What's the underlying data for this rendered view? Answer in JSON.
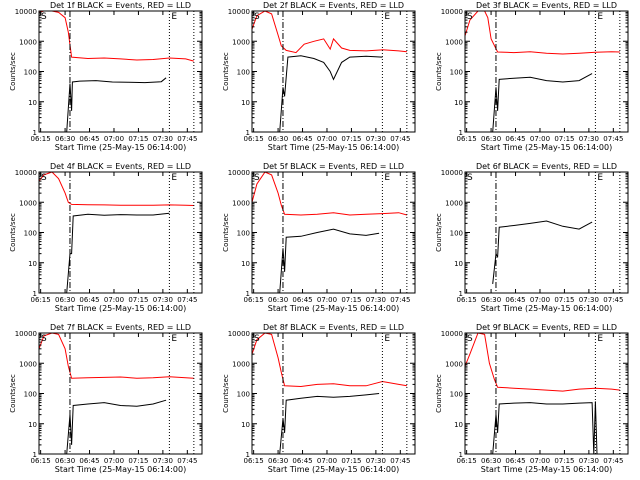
{
  "common": {
    "xlabel": "Start Time (25-May-15 06:14:00)",
    "ylabel": "Counts/sec",
    "x_ticks": [
      "06:15",
      "06:30",
      "06:45",
      "07:00",
      "07:15",
      "07:30",
      "07:45"
    ],
    "y_ticks": [
      "1",
      "10",
      "100",
      "1000",
      "10000"
    ],
    "marker_left": "S",
    "marker_right": "E",
    "colors": {
      "events": "#000000",
      "lld": "#ff0000"
    }
  },
  "chart_data": [
    {
      "type": "line",
      "title": "Det 1f BLACK = Events, RED = LLD",
      "xlabel": "Start Time (25-May-15 06:14:00)",
      "ylabel": "Counts/sec",
      "x_unit": "minutes after 06:14",
      "xlim": [
        0,
        100
      ],
      "ylim": [
        1,
        10000
      ],
      "yscale": "log",
      "vlines": [
        {
          "x": 19,
          "style": "dashdot"
        },
        {
          "x": 80,
          "style": "dotted"
        },
        {
          "x": 95,
          "style": "dotted"
        }
      ],
      "series": [
        {
          "name": "Events",
          "color": "#000000",
          "x": [
            17,
            19,
            20,
            20.5,
            25,
            35,
            45,
            55,
            65,
            75,
            78
          ],
          "y": [
            1,
            40,
            5,
            45,
            48,
            50,
            45,
            44,
            43,
            46,
            62
          ]
        },
        {
          "name": "LLD",
          "color": "#ff0000",
          "x": [
            0,
            3,
            8,
            12,
            16,
            18,
            20,
            30,
            40,
            50,
            60,
            70,
            80,
            90,
            95
          ],
          "y": [
            9000,
            10000,
            10000,
            9000,
            6000,
            2000,
            300,
            270,
            280,
            260,
            240,
            250,
            280,
            260,
            220
          ]
        }
      ]
    },
    {
      "type": "line",
      "title": "Det 2f BLACK = Events, RED = LLD",
      "xlabel": "Start Time (25-May-15 06:14:00)",
      "ylabel": "Counts/sec",
      "x_unit": "minutes after 06:14",
      "xlim": [
        0,
        100
      ],
      "ylim": [
        1,
        10000
      ],
      "yscale": "log",
      "vlines": [
        {
          "x": 19,
          "style": "dashdot"
        },
        {
          "x": 80,
          "style": "dotted"
        },
        {
          "x": 95,
          "style": "dotted"
        }
      ],
      "series": [
        {
          "name": "Events",
          "color": "#000000",
          "x": [
            17,
            19,
            20,
            22,
            30,
            38,
            44,
            48,
            50,
            55,
            60,
            70,
            80
          ],
          "y": [
            1,
            30,
            15,
            300,
            330,
            270,
            200,
            100,
            55,
            200,
            300,
            320,
            300
          ]
        },
        {
          "name": "LLD",
          "color": "#ff0000",
          "x": [
            0,
            3,
            8,
            12,
            16,
            18,
            21,
            27,
            32,
            38,
            44,
            48,
            50,
            55,
            60,
            70,
            80,
            90,
            95
          ],
          "y": [
            2500,
            7000,
            10000,
            8000,
            1600,
            700,
            500,
            420,
            800,
            1000,
            1200,
            550,
            1200,
            600,
            500,
            480,
            520,
            480,
            450
          ]
        }
      ]
    },
    {
      "type": "line",
      "title": "Det 3f BLACK = Events, RED = LLD",
      "xlabel": "Start Time (25-May-15 06:14:00)",
      "ylabel": "Counts/sec",
      "x_unit": "minutes after 06:14",
      "xlim": [
        0,
        100
      ],
      "ylim": [
        1,
        10000
      ],
      "yscale": "log",
      "vlines": [
        {
          "x": 19,
          "style": "dashdot"
        },
        {
          "x": 80,
          "style": "dotted"
        },
        {
          "x": 95,
          "style": "dotted"
        }
      ],
      "series": [
        {
          "name": "Events",
          "color": "#000000",
          "x": [
            17,
            19,
            20,
            21,
            30,
            40,
            50,
            60,
            70,
            78
          ],
          "y": [
            1,
            30,
            5,
            55,
            60,
            65,
            50,
            45,
            50,
            85
          ]
        },
        {
          "name": "LLD",
          "color": "#ff0000",
          "x": [
            0,
            3,
            8,
            12,
            14,
            16,
            20,
            30,
            40,
            50,
            60,
            70,
            80,
            90,
            95
          ],
          "y": [
            1500,
            5000,
            10000,
            10000,
            6000,
            1200,
            440,
            420,
            450,
            400,
            380,
            400,
            430,
            450,
            440
          ]
        }
      ]
    },
    {
      "type": "line",
      "title": "Det 4f BLACK = Events, RED = LLD",
      "xlabel": "Start Time (25-May-15 06:14:00)",
      "ylabel": "Counts/sec",
      "x_unit": "minutes after 06:14",
      "xlim": [
        0,
        100
      ],
      "ylim": [
        1,
        10000
      ],
      "yscale": "log",
      "vlines": [
        {
          "x": 19,
          "style": "dashdot"
        },
        {
          "x": 80,
          "style": "dotted"
        },
        {
          "x": 95,
          "style": "dotted"
        }
      ],
      "series": [
        {
          "name": "Events",
          "color": "#000000",
          "x": [
            17,
            19,
            20,
            21,
            30,
            40,
            50,
            60,
            70,
            80
          ],
          "y": [
            1,
            20,
            20,
            350,
            400,
            370,
            390,
            380,
            380,
            430
          ]
        },
        {
          "name": "LLD",
          "color": "#ff0000",
          "x": [
            0,
            3,
            8,
            12,
            16,
            18,
            20,
            30,
            40,
            50,
            60,
            70,
            80,
            90,
            95
          ],
          "y": [
            5000,
            8000,
            10000,
            6000,
            2000,
            1000,
            850,
            830,
            820,
            800,
            790,
            800,
            820,
            800,
            780
          ]
        }
      ]
    },
    {
      "type": "line",
      "title": "Det 5f BLACK = Events, RED = LLD",
      "xlabel": "Start Time (25-May-15 06:14:00)",
      "ylabel": "Counts/sec",
      "x_unit": "minutes after 06:14",
      "xlim": [
        0,
        100
      ],
      "ylim": [
        1,
        10000
      ],
      "yscale": "log",
      "vlines": [
        {
          "x": 19,
          "style": "dashdot"
        },
        {
          "x": 80,
          "style": "dotted"
        },
        {
          "x": 95,
          "style": "dotted"
        }
      ],
      "series": [
        {
          "name": "Events",
          "color": "#000000",
          "x": [
            17,
            19,
            20,
            21,
            30,
            40,
            50,
            60,
            70,
            78
          ],
          "y": [
            1,
            30,
            5,
            70,
            75,
            100,
            130,
            90,
            80,
            95
          ]
        },
        {
          "name": "LLD",
          "color": "#ff0000",
          "x": [
            0,
            3,
            8,
            12,
            16,
            18,
            20,
            30,
            40,
            50,
            60,
            70,
            80,
            90,
            95
          ],
          "y": [
            1000,
            4000,
            10000,
            8000,
            2000,
            800,
            400,
            380,
            400,
            450,
            380,
            400,
            420,
            450,
            380
          ]
        }
      ]
    },
    {
      "type": "line",
      "title": "Det 6f BLACK = Events, RED = LLD",
      "xlabel": "Start Time (25-May-15 06:14:00)",
      "ylabel": "Counts/sec",
      "x_unit": "minutes after 06:14",
      "xlim": [
        0,
        100
      ],
      "ylim": [
        1,
        10000
      ],
      "yscale": "log",
      "vlines": [
        {
          "x": 19,
          "style": "dashdot"
        },
        {
          "x": 80,
          "style": "dotted"
        },
        {
          "x": 95,
          "style": "dotted"
        }
      ],
      "series": [
        {
          "name": "Events",
          "color": "#000000",
          "x": [
            17,
            19,
            20,
            21,
            30,
            40,
            50,
            60,
            70,
            78
          ],
          "y": [
            2,
            20,
            15,
            150,
            170,
            200,
            240,
            160,
            130,
            220
          ]
        },
        {
          "name": "LLD",
          "color": "#ff0000",
          "x": [],
          "y": []
        }
      ]
    },
    {
      "type": "line",
      "title": "Det 7f BLACK = Events, RED = LLD",
      "xlabel": "Start Time (25-May-15 06:14:00)",
      "ylabel": "Counts/sec",
      "x_unit": "minutes after 06:14",
      "xlim": [
        0,
        100
      ],
      "ylim": [
        1,
        10000
      ],
      "yscale": "log",
      "vlines": [
        {
          "x": 19,
          "style": "dashdot"
        },
        {
          "x": 80,
          "style": "dotted"
        },
        {
          "x": 95,
          "style": "dotted"
        }
      ],
      "series": [
        {
          "name": "Events",
          "color": "#000000",
          "x": [
            17,
            19,
            20,
            21,
            30,
            40,
            50,
            60,
            70,
            78
          ],
          "y": [
            1,
            20,
            2,
            40,
            45,
            50,
            40,
            38,
            45,
            60
          ]
        },
        {
          "name": "LLD",
          "color": "#ff0000",
          "x": [
            0,
            3,
            8,
            12,
            16,
            18,
            20,
            30,
            40,
            50,
            60,
            70,
            80,
            90,
            95
          ],
          "y": [
            3000,
            8000,
            10000,
            9000,
            3000,
            800,
            320,
            330,
            340,
            350,
            320,
            330,
            360,
            330,
            320
          ]
        }
      ]
    },
    {
      "type": "line",
      "title": "Det 8f BLACK = Events, RED = LLD",
      "xlabel": "Start Time (25-May-15 06:14:00)",
      "ylabel": "Counts/sec",
      "x_unit": "minutes after 06:14",
      "xlim": [
        0,
        100
      ],
      "ylim": [
        1,
        10000
      ],
      "yscale": "log",
      "vlines": [
        {
          "x": 19,
          "style": "dashdot"
        },
        {
          "x": 80,
          "style": "dotted"
        },
        {
          "x": 95,
          "style": "dotted"
        }
      ],
      "series": [
        {
          "name": "Events",
          "color": "#000000",
          "x": [
            17,
            19,
            20,
            21,
            30,
            40,
            50,
            60,
            70,
            78
          ],
          "y": [
            1,
            15,
            5,
            60,
            70,
            80,
            75,
            80,
            90,
            100
          ]
        },
        {
          "name": "LLD",
          "color": "#ff0000",
          "x": [
            0,
            3,
            8,
            12,
            16,
            18,
            20,
            30,
            40,
            50,
            60,
            70,
            80,
            90,
            95
          ],
          "y": [
            2000,
            6000,
            10000,
            9000,
            1500,
            500,
            180,
            170,
            200,
            210,
            180,
            180,
            250,
            200,
            180
          ]
        }
      ]
    },
    {
      "type": "line",
      "title": "Det 9f BLACK = Events, RED = LLD",
      "xlabel": "Start Time (25-May-15 06:14:00)",
      "ylabel": "Counts/sec",
      "x_unit": "minutes after 06:14",
      "xlim": [
        0,
        100
      ],
      "ylim": [
        1,
        10000
      ],
      "yscale": "log",
      "vlines": [
        {
          "x": 19,
          "style": "dashdot"
        },
        {
          "x": 80,
          "style": "dotted"
        },
        {
          "x": 95,
          "style": "dotted"
        }
      ],
      "series": [
        {
          "name": "Events",
          "color": "#000000",
          "x": [
            17,
            19,
            20,
            21,
            30,
            40,
            50,
            60,
            70,
            78,
            79,
            80,
            81
          ],
          "y": [
            1,
            20,
            5,
            45,
            48,
            50,
            45,
            45,
            48,
            50,
            1,
            55,
            1
          ]
        },
        {
          "name": "LLD",
          "color": "#ff0000",
          "x": [
            0,
            3,
            8,
            12,
            15,
            18,
            20,
            30,
            40,
            50,
            60,
            70,
            80,
            90,
            95
          ],
          "y": [
            800,
            2000,
            10000,
            9000,
            1000,
            300,
            160,
            150,
            140,
            130,
            120,
            140,
            150,
            140,
            130
          ]
        }
      ]
    }
  ]
}
